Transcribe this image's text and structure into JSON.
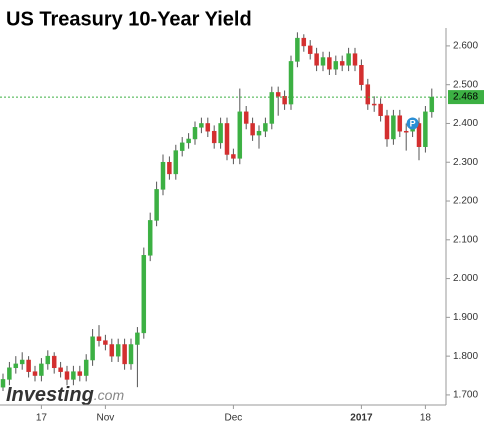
{
  "chart_data": {
    "type": "candlestick",
    "title": "US Treasury 10-Year Yield",
    "logo": {
      "brand": "Investing",
      "suffix": ".com"
    },
    "categories": [
      null,
      null,
      null,
      null,
      null,
      null,
      "17",
      null,
      null,
      null,
      null,
      null,
      null,
      null,
      null,
      null,
      "Nov",
      null,
      null,
      null,
      null,
      null,
      null,
      null,
      null,
      null,
      null,
      null,
      null,
      null,
      null,
      null,
      null,
      null,
      null,
      null,
      "Dec",
      null,
      null,
      null,
      null,
      null,
      null,
      null,
      null,
      null,
      null,
      null,
      null,
      null,
      null,
      null,
      null,
      null,
      null,
      null,
      "2017",
      null,
      null,
      null,
      null,
      null,
      null,
      null,
      null,
      null,
      "18",
      null
    ],
    "open": [
      1.72,
      1.74,
      1.77,
      1.78,
      1.79,
      1.76,
      1.75,
      1.78,
      1.8,
      1.77,
      1.76,
      1.74,
      1.76,
      1.75,
      1.79,
      1.85,
      1.84,
      1.83,
      1.8,
      1.83,
      1.78,
      1.83,
      1.86,
      2.06,
      2.15,
      2.23,
      2.3,
      2.27,
      2.33,
      2.35,
      2.36,
      2.39,
      2.4,
      2.38,
      2.35,
      2.4,
      2.32,
      2.31,
      2.43,
      2.4,
      2.37,
      2.38,
      2.4,
      2.48,
      2.47,
      2.45,
      2.56,
      2.62,
      2.6,
      2.58,
      2.55,
      2.57,
      2.54,
      2.56,
      2.55,
      2.58,
      2.55,
      2.5,
      2.45,
      2.45,
      2.42,
      2.36,
      2.42,
      2.38,
      2.38,
      2.4,
      2.34,
      2.43
    ],
    "high": [
      1.755,
      1.785,
      1.8,
      1.81,
      1.8,
      1.775,
      1.795,
      1.815,
      1.81,
      1.785,
      1.775,
      1.775,
      1.775,
      1.805,
      1.87,
      1.88,
      1.855,
      1.845,
      1.845,
      1.845,
      1.845,
      1.875,
      2.08,
      2.17,
      2.25,
      2.32,
      2.315,
      2.345,
      2.365,
      2.375,
      2.405,
      2.415,
      2.415,
      2.395,
      2.415,
      2.415,
      2.335,
      2.49,
      2.445,
      2.415,
      2.395,
      2.415,
      2.495,
      2.495,
      2.485,
      2.575,
      2.635,
      2.63,
      2.615,
      2.595,
      2.585,
      2.585,
      2.575,
      2.575,
      2.595,
      2.595,
      2.565,
      2.515,
      2.47,
      2.465,
      2.435,
      2.435,
      2.435,
      2.4,
      2.415,
      2.415,
      2.445,
      2.49
    ],
    "low": [
      1.71,
      1.725,
      1.755,
      1.765,
      1.745,
      1.735,
      1.735,
      1.765,
      1.755,
      1.745,
      1.725,
      1.725,
      1.735,
      1.735,
      1.775,
      1.825,
      1.815,
      1.785,
      1.785,
      1.765,
      1.765,
      1.72,
      1.845,
      2.045,
      2.135,
      2.215,
      2.255,
      2.255,
      2.315,
      2.335,
      2.345,
      2.375,
      2.365,
      2.335,
      2.335,
      2.305,
      2.295,
      2.295,
      2.385,
      2.355,
      2.335,
      2.365,
      2.385,
      2.42,
      2.435,
      2.435,
      2.545,
      2.585,
      2.565,
      2.535,
      2.535,
      2.525,
      2.525,
      2.535,
      2.535,
      2.535,
      2.485,
      2.435,
      2.43,
      2.405,
      2.34,
      2.345,
      2.365,
      2.33,
      2.365,
      2.305,
      2.325,
      2.415
    ],
    "close": [
      1.74,
      1.77,
      1.78,
      1.79,
      1.76,
      1.75,
      1.78,
      1.8,
      1.77,
      1.76,
      1.74,
      1.76,
      1.75,
      1.79,
      1.85,
      1.84,
      1.83,
      1.8,
      1.83,
      1.78,
      1.83,
      1.86,
      2.06,
      2.15,
      2.23,
      2.3,
      2.27,
      2.33,
      2.35,
      2.36,
      2.39,
      2.4,
      2.38,
      2.35,
      2.4,
      2.32,
      2.31,
      2.43,
      2.4,
      2.37,
      2.38,
      2.4,
      2.48,
      2.47,
      2.45,
      2.56,
      2.62,
      2.6,
      2.58,
      2.55,
      2.57,
      2.54,
      2.56,
      2.55,
      2.58,
      2.55,
      2.5,
      2.45,
      2.45,
      2.42,
      2.36,
      2.42,
      2.38,
      2.38,
      2.4,
      2.34,
      2.43,
      2.468
    ],
    "up_color": "#3cb043",
    "down_color": "#d32f2f",
    "current": 2.468,
    "annotations": [
      {
        "text": "P",
        "index": 64,
        "y": 2.4
      }
    ],
    "ylim": [
      1.674,
      2.641
    ],
    "yticks": [
      {
        "value": 1.7,
        "label": "1.700"
      },
      {
        "value": 1.8,
        "label": "1.800"
      },
      {
        "value": 1.9,
        "label": "1.900"
      },
      {
        "value": 2.0,
        "label": "2.000"
      },
      {
        "value": 2.1,
        "label": "2.100"
      },
      {
        "value": 2.2,
        "label": "2.200"
      },
      {
        "value": 2.3,
        "label": "2.300"
      },
      {
        "value": 2.4,
        "label": "2.400"
      },
      {
        "value": 2.5,
        "label": "2.500"
      },
      {
        "value": 2.6,
        "label": "2.600"
      }
    ]
  }
}
